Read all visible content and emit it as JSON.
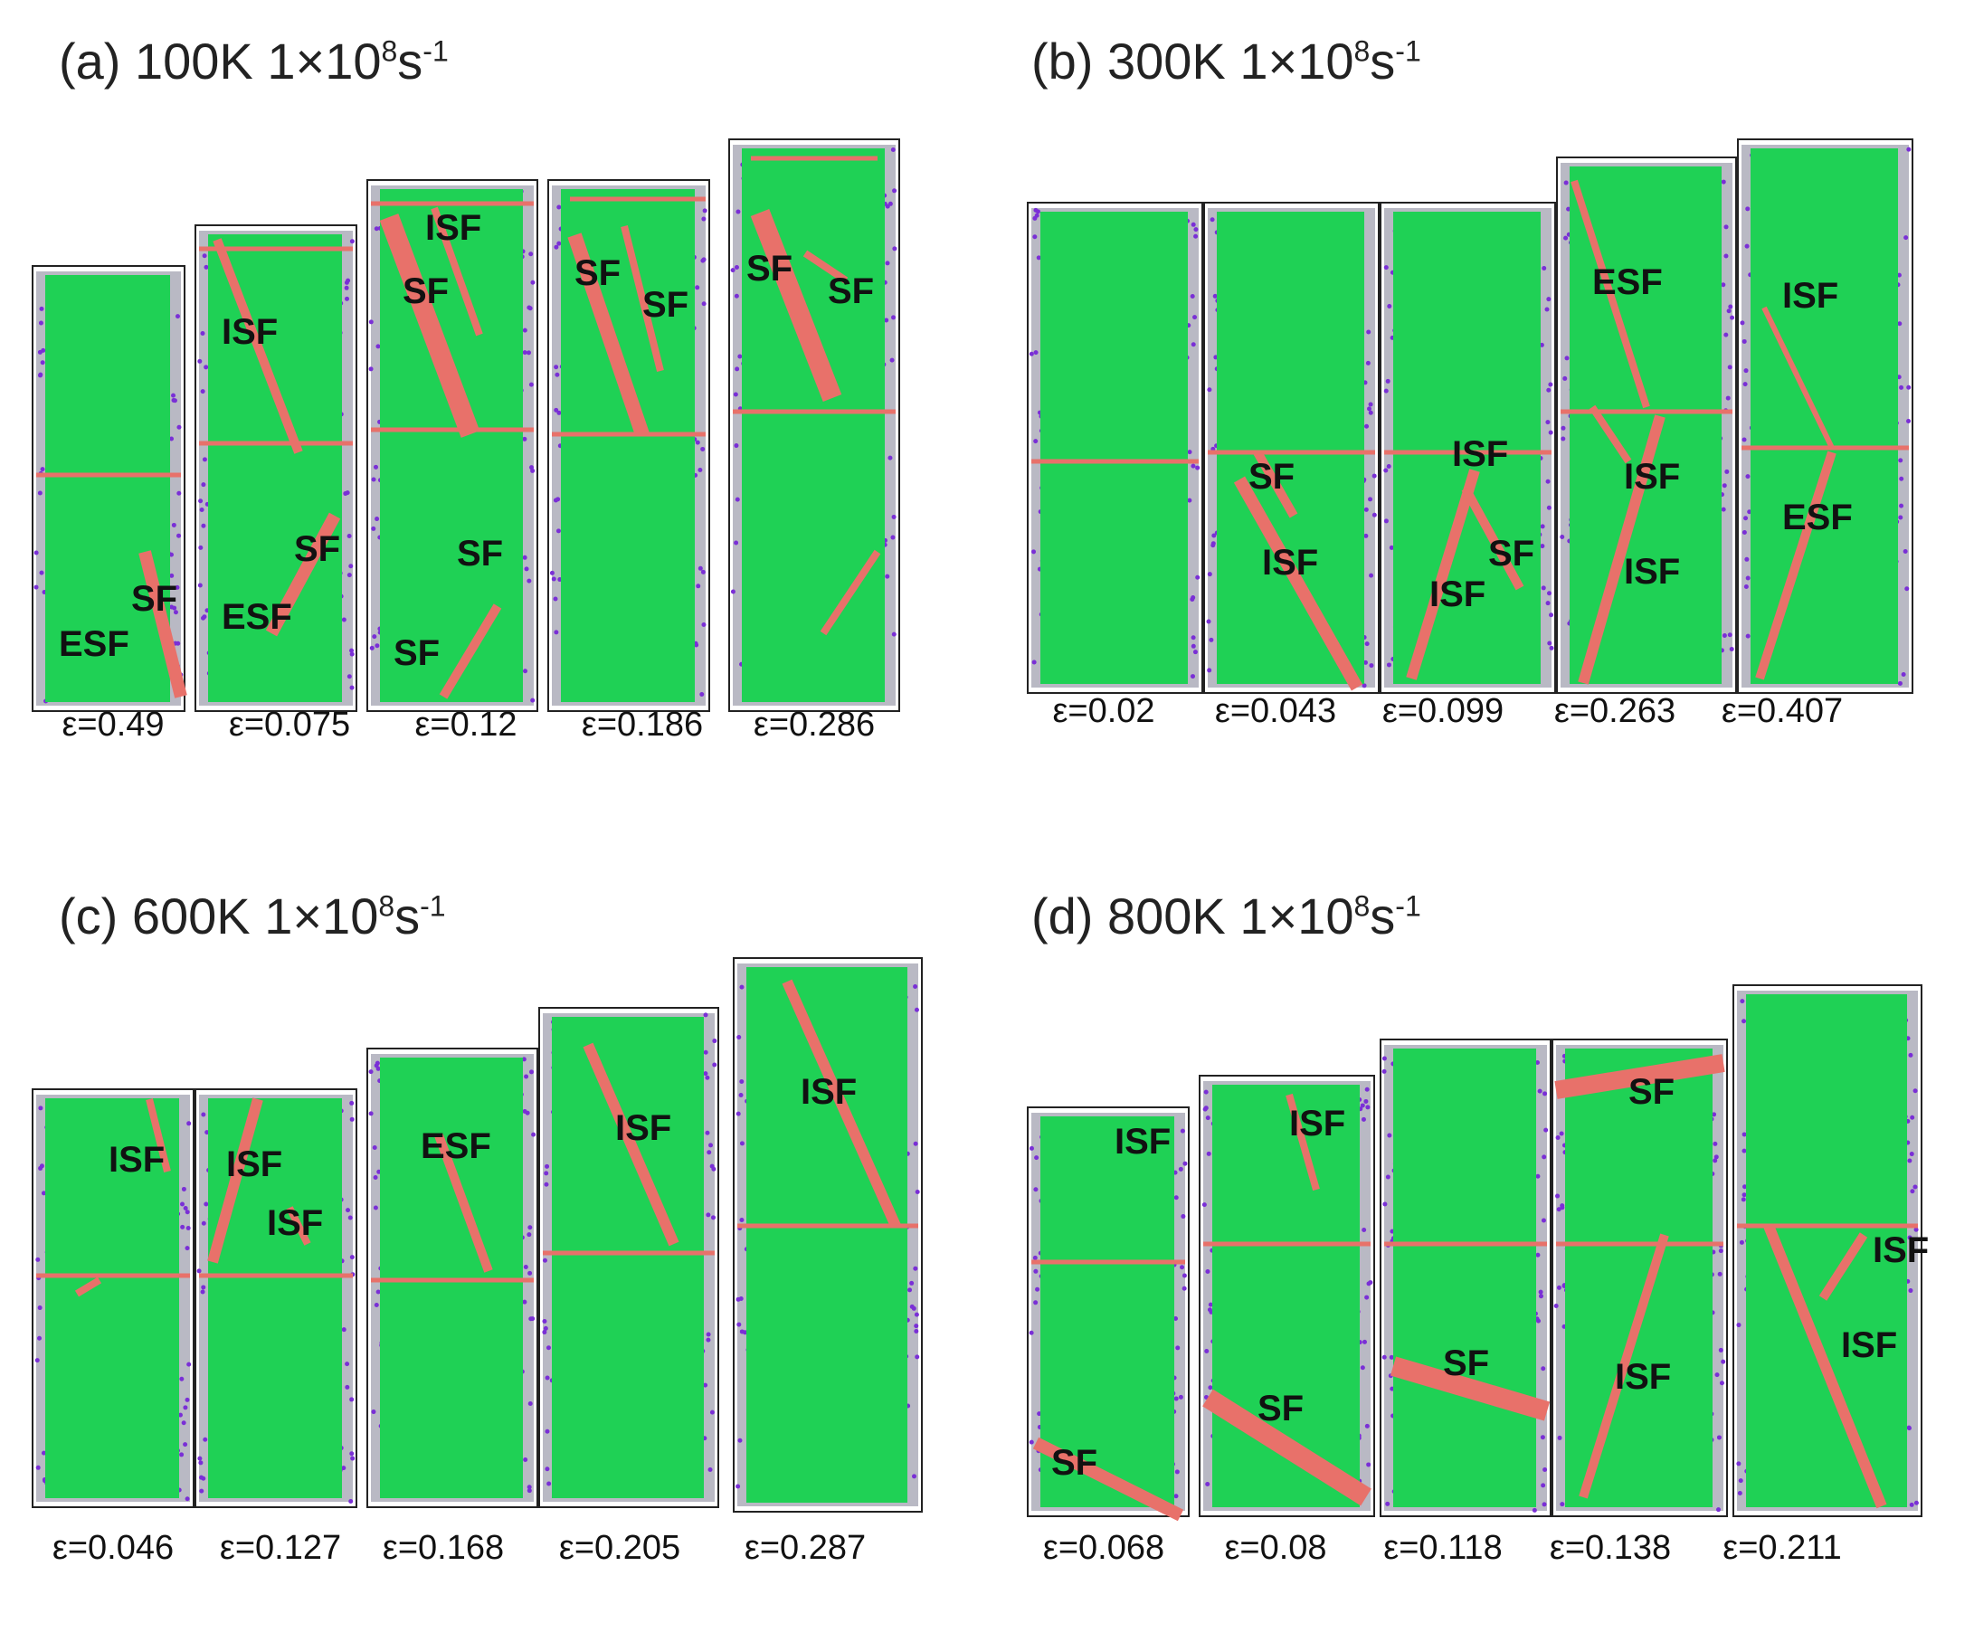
{
  "panels": [
    {
      "id": "a",
      "title_main": "(a) 100K 1×10",
      "title_sup1": "8",
      "title_s": "s",
      "title_sup2": "-1",
      "snapshots": [
        {
          "strain": "ε=0.49",
          "labels": [
            "ESF",
            "SF"
          ]
        },
        {
          "strain": "ε=0.075",
          "labels": [
            "ISF",
            "SF",
            "ESF"
          ]
        },
        {
          "strain": "ε=0.12",
          "labels": [
            "ISF",
            "SF",
            "SF",
            "SF"
          ]
        },
        {
          "strain": "ε=0.186",
          "labels": [
            "SF",
            "SF"
          ]
        },
        {
          "strain": "ε=0.286",
          "labels": [
            "SF",
            "SF"
          ]
        }
      ]
    },
    {
      "id": "b",
      "title_main": "(b) 300K 1×10",
      "title_sup1": "8",
      "title_s": "s",
      "title_sup2": "-1",
      "snapshots": [
        {
          "strain": "ε=0.02",
          "labels": []
        },
        {
          "strain": "ε=0.043",
          "labels": [
            "SF",
            "ISF"
          ]
        },
        {
          "strain": "ε=0.099",
          "labels": [
            "ISF",
            "SF",
            "ISF"
          ]
        },
        {
          "strain": "ε=0.263",
          "labels": [
            "ESF",
            "ISF",
            "ISF"
          ]
        },
        {
          "strain": "ε=0.407",
          "labels": [
            "ISF",
            "ESF"
          ]
        }
      ]
    },
    {
      "id": "c",
      "title_main": "(c) 600K 1×10",
      "title_sup1": "8",
      "title_s": "s",
      "title_sup2": "-1",
      "snapshots": [
        {
          "strain": "ε=0.046",
          "labels": [
            "ISF"
          ]
        },
        {
          "strain": "ε=0.127",
          "labels": [
            "ISF",
            "ISF"
          ]
        },
        {
          "strain": "ε=0.168",
          "labels": [
            "ESF"
          ]
        },
        {
          "strain": "ε=0.205",
          "labels": [
            "ISF"
          ]
        },
        {
          "strain": "ε=0.287",
          "labels": [
            "ISF"
          ]
        }
      ]
    },
    {
      "id": "d",
      "title_main": "(d) 800K 1×10",
      "title_sup1": "8",
      "title_s": "s",
      "title_sup2": "-1",
      "snapshots": [
        {
          "strain": "ε=0.068",
          "labels": [
            "ISF",
            "SF"
          ]
        },
        {
          "strain": "ε=0.08",
          "labels": [
            "ISF",
            "SF"
          ]
        },
        {
          "strain": "ε=0.118",
          "labels": [
            "SF"
          ]
        },
        {
          "strain": "ε=0.138",
          "labels": [
            "SF",
            "ISF"
          ]
        },
        {
          "strain": "ε=0.211",
          "labels": [
            "ISF",
            "ISF"
          ]
        }
      ]
    }
  ],
  "colors": {
    "fcc_atoms": "#1fd155",
    "stacking_fault": "#e8716a",
    "surface_atoms": "#b9b9c4",
    "defect_atoms": "#7a2fd6",
    "box_outline": "#222222"
  }
}
